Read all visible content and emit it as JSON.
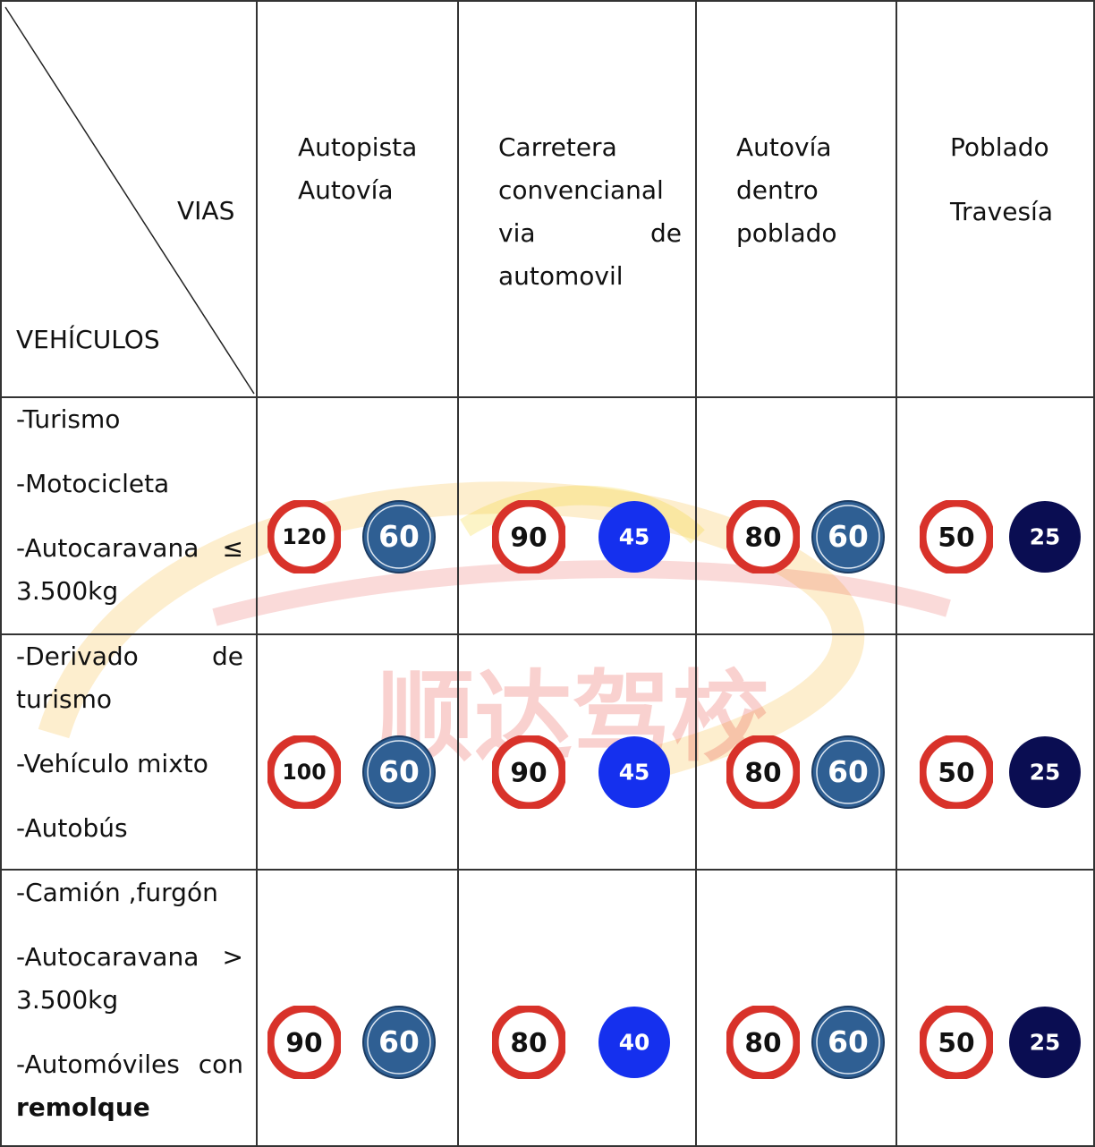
{
  "header": {
    "corner_top": "VIAS",
    "corner_bottom": "VEHÍCULOS",
    "col1": [
      "Autopista",
      "Autovía"
    ],
    "col2": [
      "Carretera",
      "convencianal",
      "via",
      "de",
      "automovil"
    ],
    "col3": [
      "Autovía",
      "dentro",
      "poblado"
    ],
    "col4": [
      "Poblado",
      "Travesía"
    ]
  },
  "rows": [
    {
      "vehicles": [
        "-Turismo",
        "-Motocicleta",
        "-Autocaravana",
        "≤",
        "3.500kg"
      ],
      "limits": [
        [
          "120",
          "60"
        ],
        [
          "90",
          "45"
        ],
        [
          "80",
          "60"
        ],
        [
          "50",
          "25"
        ]
      ]
    },
    {
      "vehicles": [
        "-Derivado",
        "de",
        "turismo",
        "-Vehículo mixto",
        "-Autobús"
      ],
      "limits": [
        [
          "100",
          "60"
        ],
        [
          "90",
          "45"
        ],
        [
          "80",
          "60"
        ],
        [
          "50",
          "25"
        ]
      ]
    },
    {
      "vehicles": [
        "-Camión ,furgón",
        "-Autocaravana",
        ">",
        "3.500kg",
        "-Automóviles",
        "con",
        "remolque"
      ],
      "limits": [
        [
          "90",
          "60"
        ],
        [
          "80",
          "40"
        ],
        [
          "80",
          "60"
        ],
        [
          "50",
          "25"
        ]
      ]
    }
  ],
  "watermark": "顺达驾校",
  "colors": {
    "max_ring": "#d8322a",
    "min_steel": "#2f5f93",
    "min_blue": "#1530ee",
    "min_navy": "#0a0d52"
  }
}
